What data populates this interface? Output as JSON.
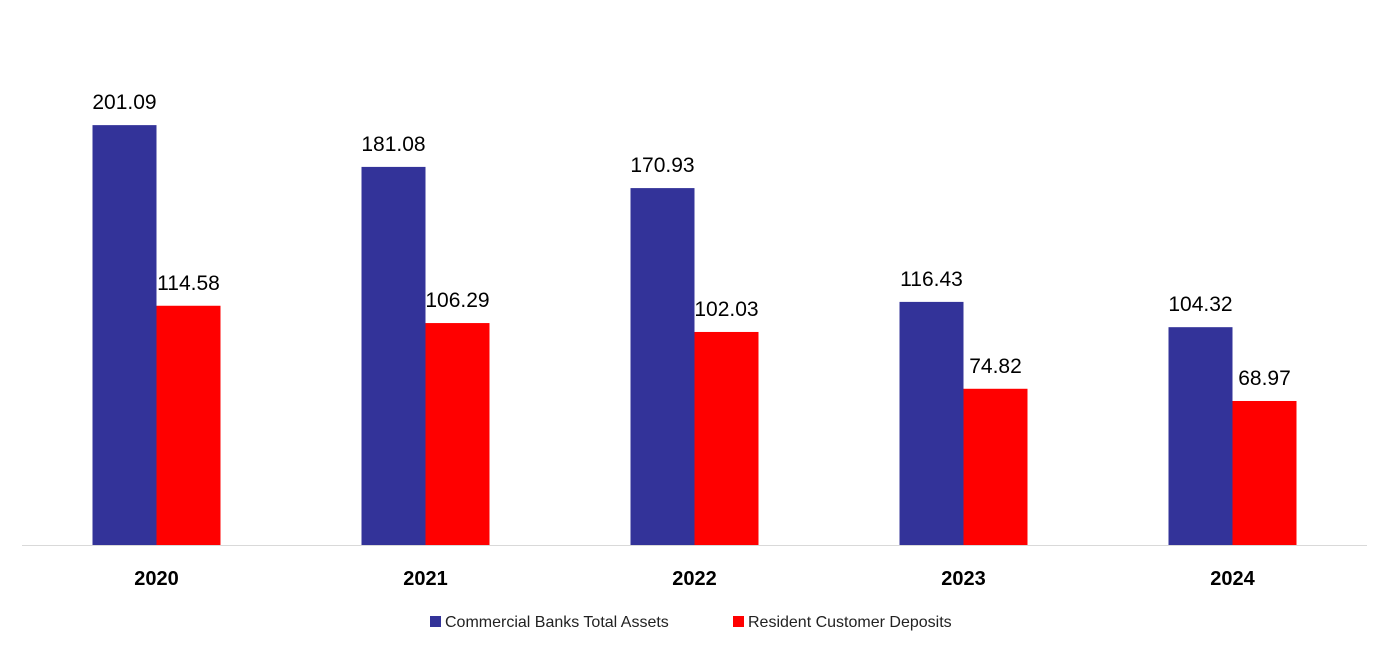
{
  "chart_data": {
    "type": "bar",
    "title": "",
    "xlabel": "",
    "ylabel": "",
    "categories": [
      "2020",
      "2021",
      "2022",
      "2023",
      "2024"
    ],
    "series": [
      {
        "name": "Commercial Banks Total Assets",
        "color": "#333399",
        "values": [
          201.09,
          181.08,
          170.93,
          116.43,
          104.32
        ],
        "labels": [
          "201.09",
          "181.08",
          "170.93",
          "116.43",
          "104.32"
        ]
      },
      {
        "name": "Resident Customer Deposits",
        "color": "#FF0000",
        "values": [
          114.58,
          106.29,
          102.03,
          74.82,
          68.97
        ],
        "labels": [
          "114.58",
          "106.29",
          "102.03",
          "74.82",
          "68.97"
        ]
      }
    ],
    "ylim": [
      0,
      250
    ],
    "grid": false,
    "legend_position": "bottom"
  }
}
